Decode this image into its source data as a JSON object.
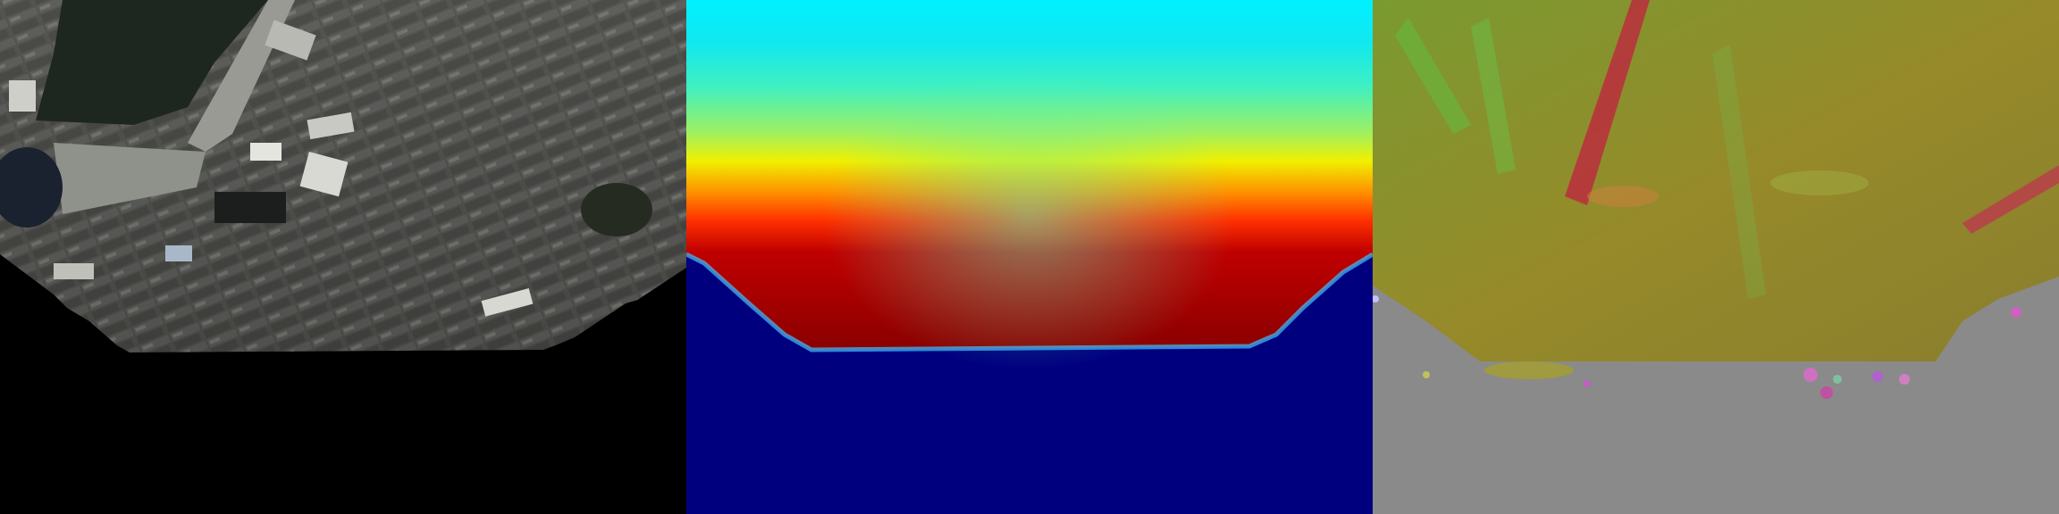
{
  "panels": [
    {
      "id": "rgb",
      "kind": "aerial-photo"
    },
    {
      "id": "depth",
      "kind": "depth-map",
      "colormap": "jet",
      "background": "#00007f"
    },
    {
      "id": "normal",
      "kind": "surface-normal-map",
      "background": "#808080"
    }
  ],
  "colors": {
    "sky_black": "#000000",
    "depth_near": "#7f0000",
    "depth_far": "#00ffff",
    "normal_ground": "#8f8a2a",
    "invalid_gray": "#8a8a8a"
  }
}
